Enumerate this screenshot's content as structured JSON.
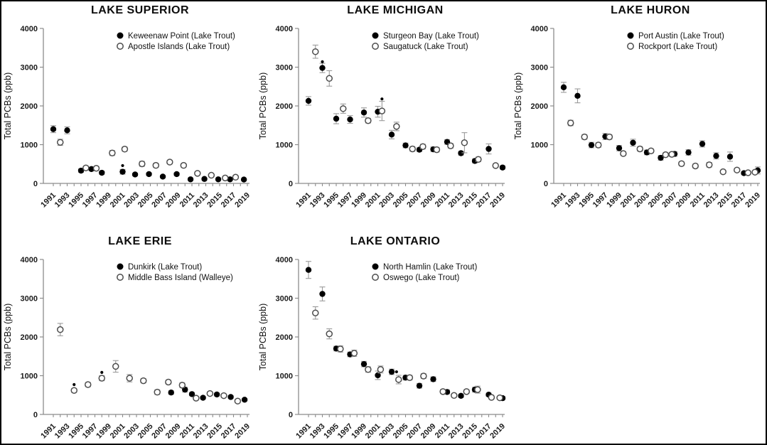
{
  "figure": {
    "background": "#ffffff",
    "border_color": "#000000",
    "description": "Total PCB concentrations in Great Lakes fish, five panels"
  },
  "style": {
    "axis_color": "#8c8c8c",
    "error_bar_color": "#9a9a9a",
    "marker_color": "#000000",
    "open_marker_stroke": "#4d4d4d",
    "text_color": "#1a1a1a"
  },
  "axes": {
    "y_label": "Total PCBs (ppb)",
    "y_ticks": [
      0,
      1000,
      2000,
      3000,
      4000
    ],
    "y_max": 4000,
    "x_year_min": 1991,
    "x_year_max": 2019,
    "x_tick_years": [
      1991,
      1993,
      1995,
      1997,
      1999,
      2001,
      2003,
      2005,
      2007,
      2009,
      2011,
      2013,
      2015,
      2017,
      2019
    ]
  },
  "chart_data": [
    {
      "id": "lake-superior",
      "type": "scatter",
      "title": "LAKE SUPERIOR",
      "xlabel": "",
      "ylabel": "Total PCBs (ppb)",
      "ylim": [
        0,
        4000
      ],
      "legend": [
        {
          "marker": "filled",
          "label": "Keweenaw Point (Lake Trout)"
        },
        {
          "marker": "open",
          "label": "Apostle Islands (Lake Trout)"
        }
      ],
      "series": [
        {
          "name": "Keweenaw Point (Lake Trout)",
          "marker": "filled",
          "points": [
            [
              1991,
              1400,
              90
            ],
            [
              1993,
              1370,
              90
            ],
            [
              1995,
              330,
              45
            ],
            [
              1996.5,
              370,
              45
            ],
            [
              1998,
              275,
              40
            ],
            [
              2001,
              300,
              60
            ],
            [
              2002.8,
              230,
              35
            ],
            [
              2004.8,
              240,
              35
            ],
            [
              2006.8,
              175,
              30
            ],
            [
              2008.8,
              240,
              35
            ],
            [
              2010.8,
              105,
              25
            ],
            [
              2012.8,
              115,
              25
            ],
            [
              2014.8,
              105,
              20
            ],
            [
              2016.5,
              105,
              20
            ],
            [
              2018.5,
              100,
              20
            ]
          ]
        },
        {
          "name": "Apostle Islands (Lake Trout)",
          "marker": "open",
          "points": [
            [
              1992,
              1060,
              80
            ],
            [
              1995.7,
              400,
              45
            ],
            [
              1997.2,
              390,
              45
            ],
            [
              1999.5,
              785,
              65
            ],
            [
              2001.3,
              885,
              55
            ],
            [
              2003.8,
              505,
              65
            ],
            [
              2005.8,
              465,
              55
            ],
            [
              2007.8,
              550,
              45
            ],
            [
              2009.8,
              465,
              45
            ],
            [
              2011.8,
              260,
              40
            ],
            [
              2013.8,
              210,
              35
            ],
            [
              2015.8,
              140,
              30
            ],
            [
              2017.3,
              160,
              30
            ]
          ]
        }
      ],
      "asterisks": [
        [
          2001,
          460
        ]
      ]
    },
    {
      "id": "lake-michigan",
      "type": "scatter",
      "title": "LAKE MICHIGAN",
      "xlabel": "",
      "ylabel": "Total PCBs (ppb)",
      "ylim": [
        0,
        4000
      ],
      "legend": [
        {
          "marker": "filled",
          "label": "Sturgeon Bay (Lake Trout)"
        },
        {
          "marker": "open",
          "label": "Saugatuck (Lake Trout)"
        }
      ],
      "series": [
        {
          "name": "Sturgeon Bay (Lake Trout)",
          "marker": "filled",
          "points": [
            [
              1991,
              2130,
              110
            ],
            [
              1993,
              2980,
              120
            ],
            [
              1995,
              1670,
              130
            ],
            [
              1997,
              1650,
              100
            ],
            [
              1999,
              1830,
              120
            ],
            [
              2001,
              1850,
              140
            ],
            [
              2003,
              1260,
              110
            ],
            [
              2005,
              980,
              60
            ],
            [
              2007,
              870,
              50
            ],
            [
              2009,
              880,
              60
            ],
            [
              2011,
              1070,
              60
            ],
            [
              2013,
              780,
              50
            ],
            [
              2015,
              580,
              50
            ],
            [
              2017,
              890,
              130
            ],
            [
              2019,
              410,
              40
            ]
          ]
        },
        {
          "name": "Saugatuck (Lake Trout)",
          "marker": "open",
          "points": [
            [
              1992,
              3400,
              170
            ],
            [
              1994,
              2710,
              200
            ],
            [
              1996,
              1930,
              120
            ],
            [
              1999.6,
              1620,
              60
            ],
            [
              2001.6,
              1870,
              250
            ],
            [
              2003.7,
              1470,
              110
            ],
            [
              2006,
              890,
              60
            ],
            [
              2007.5,
              950,
              60
            ],
            [
              2009.5,
              870,
              60
            ],
            [
              2011.5,
              970,
              60
            ],
            [
              2013.5,
              1050,
              260
            ],
            [
              2015.5,
              620,
              60
            ],
            [
              2018,
              460,
              50
            ]
          ]
        }
      ],
      "asterisks": [
        [
          1993,
          3140
        ],
        [
          2001.6,
          2180
        ]
      ]
    },
    {
      "id": "lake-huron",
      "type": "scatter",
      "title": "LAKE HURON",
      "xlabel": "",
      "ylabel": "Total PCBs (ppb)",
      "ylim": [
        0,
        4000
      ],
      "legend": [
        {
          "marker": "filled",
          "label": "Port Austin (Lake Trout)"
        },
        {
          "marker": "open",
          "label": "Rockport (Lake Trout)"
        }
      ],
      "series": [
        {
          "name": "Port Austin (Lake Trout)",
          "marker": "filled",
          "points": [
            [
              1991,
              2480,
              130
            ],
            [
              1993,
              2260,
              180
            ],
            [
              1995,
              990,
              70
            ],
            [
              1997,
              1210,
              80
            ],
            [
              1999,
              910,
              70
            ],
            [
              2001,
              1050,
              90
            ],
            [
              2003,
              800,
              60
            ],
            [
              2005,
              660,
              60
            ],
            [
              2007,
              760,
              60
            ],
            [
              2009,
              800,
              70
            ],
            [
              2011,
              1020,
              80
            ],
            [
              2013,
              710,
              80
            ],
            [
              2015,
              690,
              120
            ],
            [
              2017,
              265,
              40
            ],
            [
              2019,
              335,
              90
            ]
          ]
        },
        {
          "name": "Rockport (Lake Trout)",
          "marker": "open",
          "points": [
            [
              1992,
              1560,
              70
            ],
            [
              1994,
              1200,
              60
            ],
            [
              1996,
              990,
              60
            ],
            [
              1997.6,
              1200,
              60
            ],
            [
              1999.6,
              770,
              50
            ],
            [
              2002,
              890,
              60
            ],
            [
              2003.6,
              840,
              50
            ],
            [
              2005.7,
              740,
              50
            ],
            [
              2006.6,
              750,
              50
            ],
            [
              2008,
              510,
              50
            ],
            [
              2010,
              450,
              50
            ],
            [
              2012,
              480,
              60
            ],
            [
              2014,
              300,
              40
            ],
            [
              2016,
              345,
              40
            ],
            [
              2017.6,
              275,
              35
            ],
            [
              2018.6,
              290,
              35
            ]
          ]
        }
      ],
      "asterisks": []
    },
    {
      "id": "lake-erie",
      "type": "scatter",
      "title": "LAKE ERIE",
      "xlabel": "",
      "ylabel": "Total PCBs (ppb)",
      "ylim": [
        0,
        4000
      ],
      "legend": [
        {
          "marker": "filled",
          "label": "Dunkirk (Lake Trout)"
        },
        {
          "marker": "open",
          "label": "Middle Bass Island (Walleye)"
        }
      ],
      "series": [
        {
          "name": "Dunkirk (Lake Trout)",
          "marker": "filled",
          "points": [
            [
              2008,
              565,
              45
            ],
            [
              2010,
              640,
              60
            ],
            [
              2011,
              525,
              40
            ],
            [
              2012.6,
              430,
              35
            ],
            [
              2014.6,
              515,
              40
            ],
            [
              2016.6,
              450,
              35
            ],
            [
              2018.6,
              380,
              30
            ]
          ]
        },
        {
          "name": "Middle Bass Island (Walleye)",
          "marker": "open",
          "points": [
            [
              1992,
              2190,
              160
            ],
            [
              1994,
              620,
              50
            ],
            [
              1996,
              770,
              55
            ],
            [
              1998,
              935,
              65
            ],
            [
              2000,
              1240,
              150
            ],
            [
              2002,
              935,
              95
            ],
            [
              2004,
              870,
              55
            ],
            [
              2006,
              575,
              60
            ],
            [
              2007.6,
              835,
              50
            ],
            [
              2009.6,
              755,
              60
            ],
            [
              2011.6,
              420,
              40
            ],
            [
              2013.6,
              540,
              45
            ],
            [
              2015.6,
              485,
              40
            ],
            [
              2017.6,
              345,
              45
            ]
          ]
        }
      ],
      "asterisks": [
        [
          1994,
          770
        ],
        [
          1998,
          1085
        ]
      ]
    },
    {
      "id": "lake-ontario",
      "type": "scatter",
      "title": "LAKE ONTARIO",
      "xlabel": "",
      "ylabel": "Total PCBs (ppb)",
      "ylim": [
        0,
        4000
      ],
      "legend": [
        {
          "marker": "filled",
          "label": "North Hamlin (Lake Trout)"
        },
        {
          "marker": "open",
          "label": "Oswego (Lake Trout)"
        }
      ],
      "series": [
        {
          "name": "North Hamlin (Lake Trout)",
          "marker": "filled",
          "points": [
            [
              1991,
              3730,
              220
            ],
            [
              1993,
              3110,
              180
            ],
            [
              1995,
              1700,
              60
            ],
            [
              1997,
              1550,
              60
            ],
            [
              1999,
              1300,
              70
            ],
            [
              2001,
              1010,
              110
            ],
            [
              2003,
              1100,
              70
            ],
            [
              2005,
              950,
              60
            ],
            [
              2007,
              740,
              60
            ],
            [
              2009,
              910,
              60
            ],
            [
              2011,
              580,
              50
            ],
            [
              2013,
              480,
              40
            ],
            [
              2015,
              640,
              60
            ],
            [
              2017,
              510,
              40
            ],
            [
              2019,
              420,
              40
            ]
          ]
        },
        {
          "name": "Oswego (Lake Trout)",
          "marker": "open",
          "points": [
            [
              1992,
              2620,
              160
            ],
            [
              1994,
              2080,
              130
            ],
            [
              1995.6,
              1690,
              80
            ],
            [
              1997.6,
              1580,
              80
            ],
            [
              1999.6,
              1160,
              70
            ],
            [
              2001.4,
              1160,
              90
            ],
            [
              2004,
              900,
              110
            ],
            [
              2005.6,
              950,
              60
            ],
            [
              2007.6,
              990,
              60
            ],
            [
              2010.4,
              590,
              50
            ],
            [
              2012,
              490,
              40
            ],
            [
              2013.8,
              590,
              50
            ],
            [
              2015.4,
              640,
              90
            ],
            [
              2017.4,
              440,
              40
            ],
            [
              2018.6,
              430,
              40
            ]
          ]
        }
      ],
      "asterisks": [
        [
          2003.7,
          1100
        ]
      ]
    }
  ]
}
